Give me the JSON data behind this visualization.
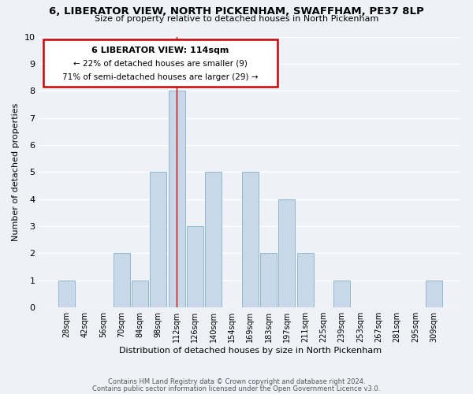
{
  "title": "6, LIBERATOR VIEW, NORTH PICKENHAM, SWAFFHAM, PE37 8LP",
  "subtitle": "Size of property relative to detached houses in North Pickenham",
  "xlabel": "Distribution of detached houses by size in North Pickenham",
  "ylabel": "Number of detached properties",
  "footer_line1": "Contains HM Land Registry data © Crown copyright and database right 2024.",
  "footer_line2": "Contains public sector information licensed under the Open Government Licence v3.0.",
  "bin_labels": [
    "28sqm",
    "42sqm",
    "56sqm",
    "70sqm",
    "84sqm",
    "98sqm",
    "112sqm",
    "126sqm",
    "140sqm",
    "154sqm",
    "169sqm",
    "183sqm",
    "197sqm",
    "211sqm",
    "225sqm",
    "239sqm",
    "253sqm",
    "267sqm",
    "281sqm",
    "295sqm",
    "309sqm"
  ],
  "bin_values": [
    1,
    0,
    0,
    2,
    1,
    5,
    8,
    3,
    5,
    0,
    5,
    2,
    4,
    2,
    0,
    1,
    0,
    0,
    0,
    0,
    1
  ],
  "bar_color": "#c8d8e8",
  "bar_edgecolor": "#8fb8d0",
  "highlight_bin_index": 6,
  "highlight_line_color": "#cc0000",
  "ylim": [
    0,
    10
  ],
  "yticks": [
    0,
    1,
    2,
    3,
    4,
    5,
    6,
    7,
    8,
    9,
    10
  ],
  "annotation_title": "6 LIBERATOR VIEW: 114sqm",
  "annotation_line2": "← 22% of detached houses are smaller (9)",
  "annotation_line3": "71% of semi-detached houses are larger (29) →",
  "annotation_box_color": "#ffffff",
  "annotation_border_color": "#cc0000",
  "background_color": "#eef2f7",
  "grid_color": "#ffffff"
}
